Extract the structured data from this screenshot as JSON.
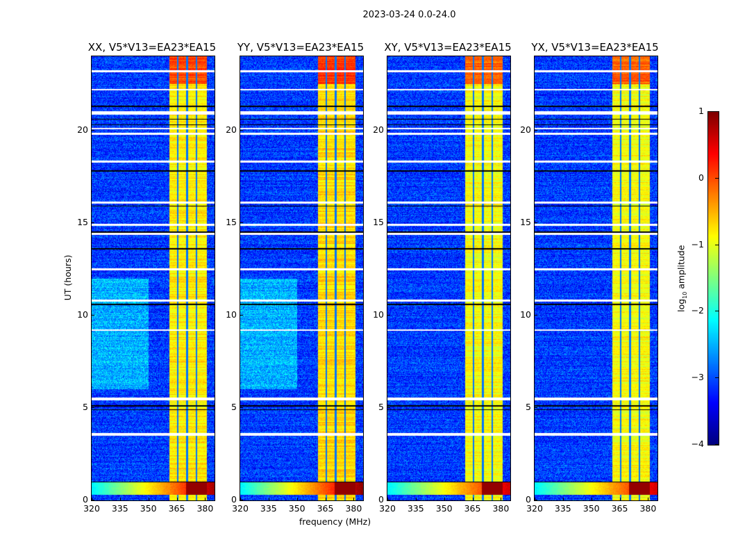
{
  "figure": {
    "suptitle": "2023-03-24 0.0-24.0"
  },
  "chart_data": {
    "type": "heatmap",
    "title": "2023-03-24 0.0-24.0",
    "xlabel": "frequency (MHz)",
    "ylabel": "UT (hours)",
    "xlim": [
      320,
      385
    ],
    "ylim": [
      0,
      24
    ],
    "xticks": [
      "320",
      "335",
      "350",
      "365",
      "380"
    ],
    "xtick_values": [
      320,
      335,
      350,
      365,
      380
    ],
    "yticks": [
      "0",
      "5",
      "10",
      "15",
      "20"
    ],
    "ytick_values": [
      0,
      5,
      10,
      15,
      20
    ],
    "colormap": "jet",
    "panels": [
      {
        "title": "XX, V5*V13=EA23*EA15",
        "band_level": -0.8,
        "low_rfi_level": 0.6
      },
      {
        "title": "YY, V5*V13=EA23*EA15",
        "band_level": -0.7,
        "low_rfi_level": 0.7
      },
      {
        "title": "XY, V5*V13=EA23*EA15",
        "band_level": -0.9,
        "low_rfi_level": 0.4
      },
      {
        "title": "YX, V5*V13=EA23*EA15",
        "band_level": -0.9,
        "low_rfi_level": 0.4
      }
    ],
    "background_level": -3.1,
    "bright_band_mhz": [
      361,
      381
    ],
    "band_dividers_mhz": [
      365.5,
      370.5,
      375.5
    ],
    "low_rfi_hours": [
      0.3,
      1.0
    ],
    "flagged_hours_white": [
      3.55,
      3.6,
      5.45,
      5.5,
      9.2,
      10.8,
      12.5,
      14.4,
      14.9,
      16.1,
      18.3,
      19.8,
      20.1,
      20.9,
      21.0,
      22.2,
      23.2
    ],
    "flagged_hours_black": [
      1.0,
      4.9,
      5.1,
      10.6,
      13.6,
      14.5,
      15.9,
      17.8,
      20.3,
      20.6,
      21.3
    ],
    "colorbar": {
      "label_main": "log",
      "label_sub": "10",
      "label_rest": " amplitude",
      "range": [
        -4,
        1
      ],
      "ticks": [
        "1",
        "0",
        "−1",
        "−2",
        "−3",
        "−4"
      ],
      "tick_values": [
        1,
        0,
        -1,
        -2,
        -3,
        -4
      ]
    }
  }
}
